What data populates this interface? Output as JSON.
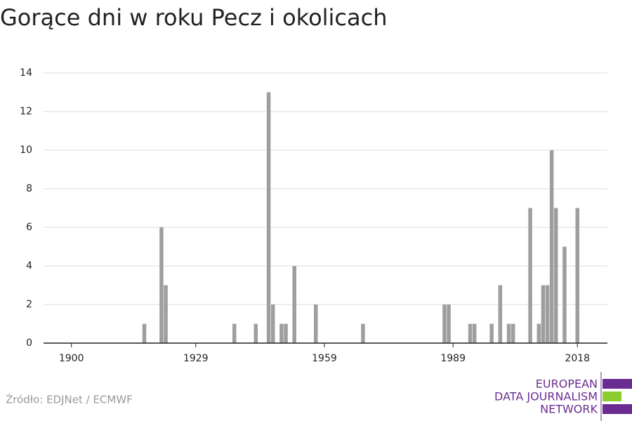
{
  "chart_data": {
    "type": "bar",
    "title": "Gorące dni w roku Pecz i okolicach",
    "x": [
      1917,
      1921,
      1922,
      1938,
      1943,
      1946,
      1947,
      1949,
      1950,
      1952,
      1957,
      1968,
      1987,
      1988,
      1993,
      1994,
      1998,
      2000,
      2002,
      2003,
      2007,
      2009,
      2010,
      2011,
      2012,
      2013,
      2015,
      2018
    ],
    "values": [
      1,
      6,
      3,
      1,
      1,
      13,
      2,
      1,
      1,
      4,
      2,
      1,
      2,
      2,
      1,
      1,
      1,
      3,
      1,
      1,
      7,
      1,
      3,
      3,
      10,
      7,
      5,
      7
    ],
    "color": "#9e9e9e",
    "xlim": [
      1893.5,
      2025
    ],
    "xticks": [
      1900,
      1929,
      1959,
      1989,
      2018
    ],
    "ylim": [
      0,
      14
    ],
    "yticks": [
      0,
      2,
      4,
      6,
      8,
      10,
      12,
      14
    ],
    "grid": true,
    "source": "Źródło: EDJNet / ECMWF",
    "logo": [
      "EUROPEAN",
      "DATA JOURNALISM",
      "NETWORK"
    ]
  }
}
